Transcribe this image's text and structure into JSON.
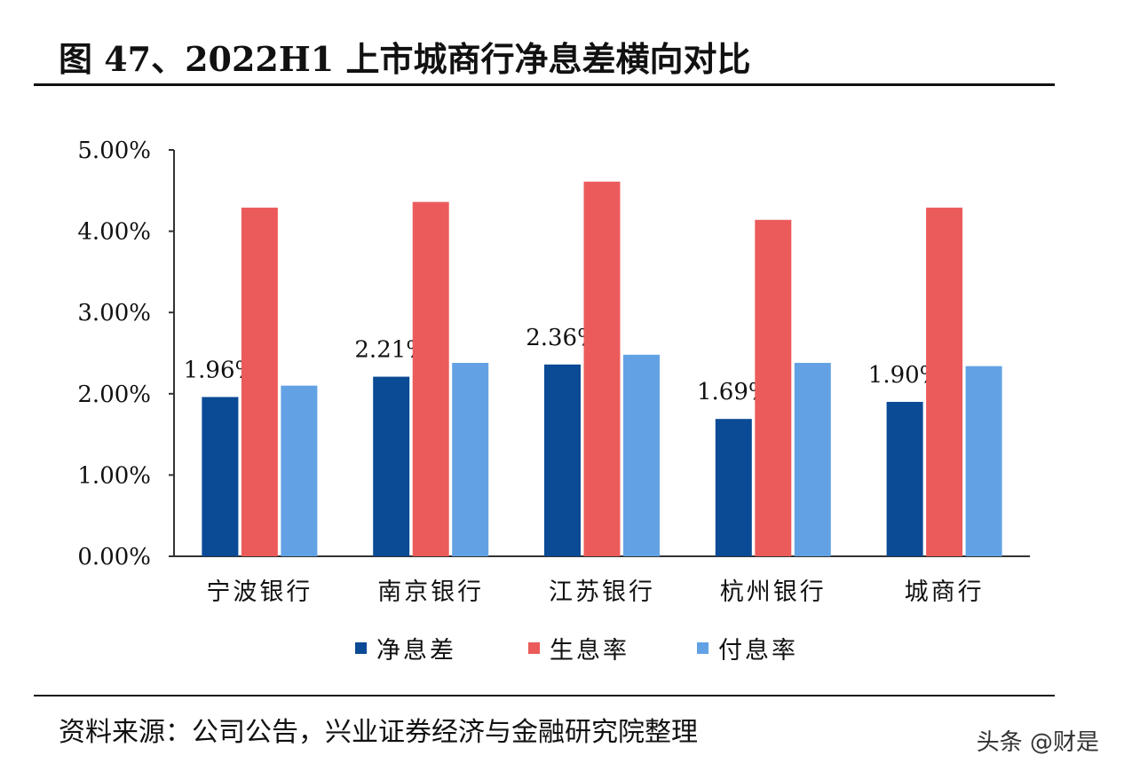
{
  "title": "图 47、2022H1 上市城商行净息差横向对比",
  "source": "资料来源：公司公告，兴业证券经济与金融研究院整理",
  "watermark": "头条 @财是",
  "chart_data": {
    "type": "bar",
    "categories": [
      "宁波银行",
      "南京银行",
      "江苏银行",
      "杭州银行",
      "城商行"
    ],
    "series": [
      {
        "name": "净息差",
        "color": "#0B4A94",
        "values": [
          1.96,
          2.21,
          2.36,
          1.69,
          1.9
        ],
        "data_labels": [
          "1.96%",
          "2.21%",
          "2.36%",
          "1.69%",
          "1.90%"
        ]
      },
      {
        "name": "生息率",
        "color": "#EC5B5B",
        "values": [
          4.29,
          4.36,
          4.61,
          4.14,
          4.29
        ]
      },
      {
        "name": "付息率",
        "color": "#62A2E4",
        "values": [
          2.1,
          2.38,
          2.48,
          2.38,
          2.34
        ]
      }
    ],
    "yticks": [
      "0.00%",
      "1.00%",
      "2.00%",
      "3.00%",
      "4.00%",
      "5.00%"
    ],
    "ylim": [
      0,
      5
    ],
    "grid": false,
    "legend": "bottom"
  }
}
